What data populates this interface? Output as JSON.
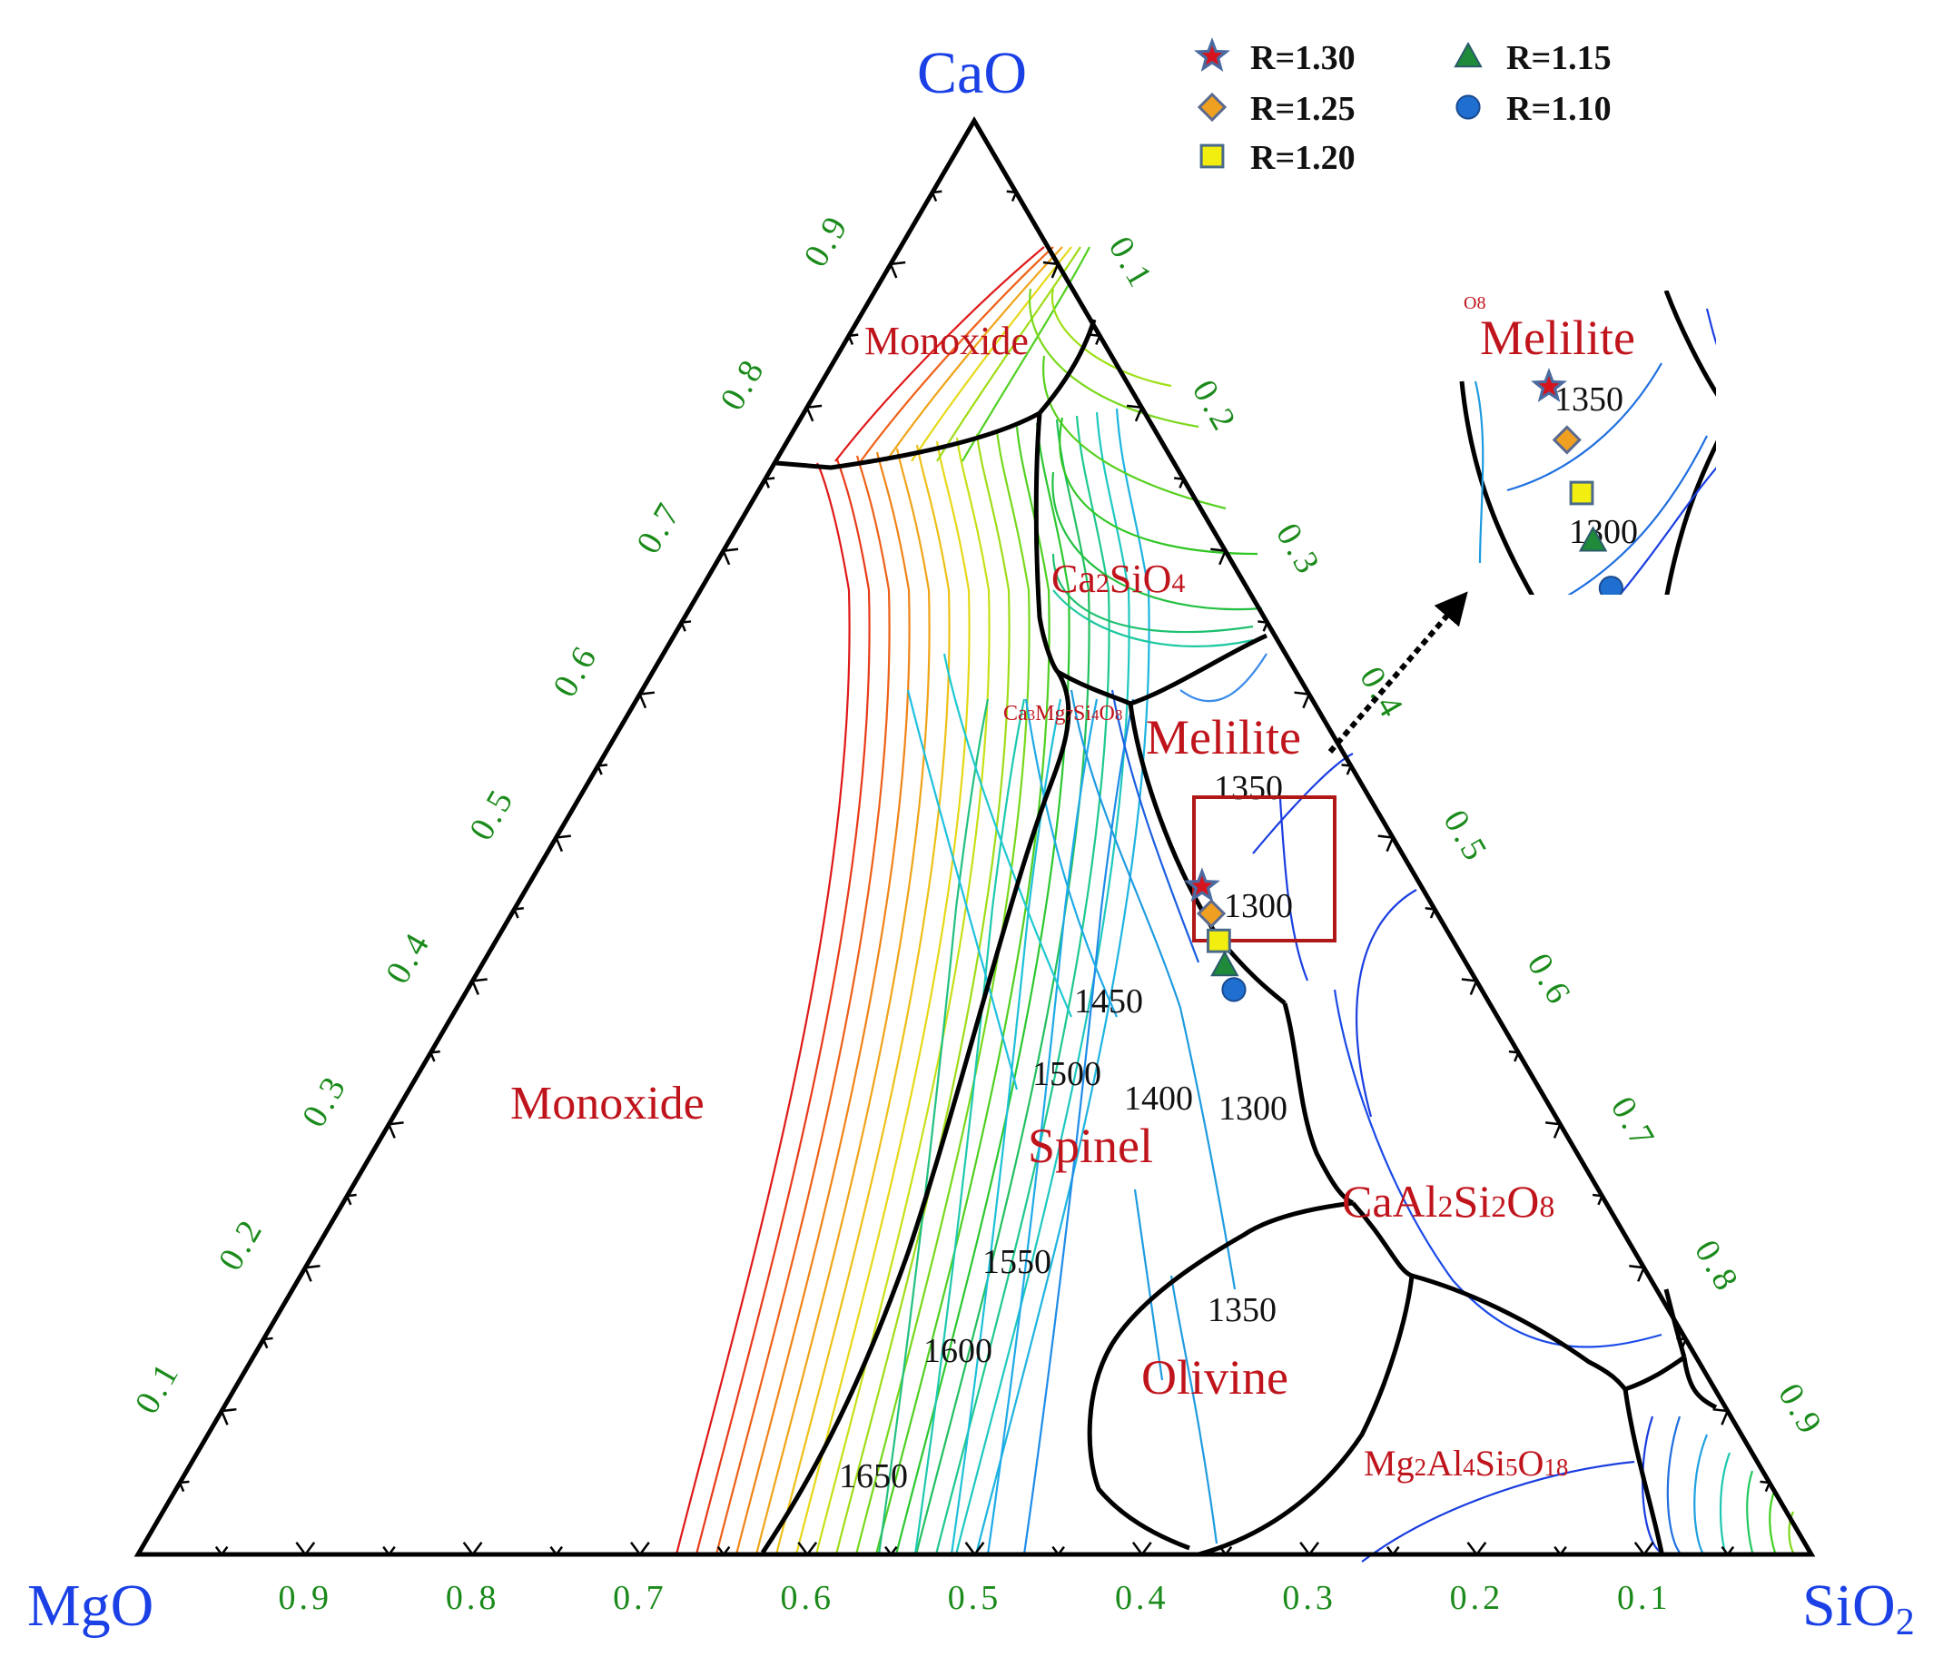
{
  "chart_data": {
    "type": "ternary",
    "vertices": {
      "left": "MgO",
      "top": "CaO",
      "right": "SiO2"
    },
    "axes": {
      "bottom_ticks": [
        "0.9",
        "0.8",
        "0.7",
        "0.6",
        "0.5",
        "0.4",
        "0.3",
        "0.2",
        "0.1"
      ],
      "left_ticks": [
        "0.1",
        "0.2",
        "0.3",
        "0.4",
        "0.5",
        "0.6",
        "0.7",
        "0.8",
        "0.9"
      ],
      "right_ticks": [
        "0.1",
        "0.2",
        "0.3",
        "0.4",
        "0.5",
        "0.6",
        "0.7",
        "0.8",
        "0.9"
      ]
    },
    "phase_fields": [
      {
        "label": "Monoxide",
        "position": "top"
      },
      {
        "label": "Monoxide",
        "position": "left"
      },
      {
        "label": "Ca2SiO4"
      },
      {
        "label": "Ca3Mg7Si4O8"
      },
      {
        "label": "Melilite"
      },
      {
        "label": "Spinel"
      },
      {
        "label": "CaAl2Si2O8"
      },
      {
        "label": "Olivine"
      },
      {
        "label": "Mg2Al4Si5O18"
      }
    ],
    "isotherms": [
      "1650",
      "1600",
      "1550",
      "1500",
      "1450",
      "1400",
      "1350",
      "1300",
      "1350",
      "1300"
    ],
    "points": [
      {
        "name": "R=1.30",
        "marker": "star",
        "color": "#d6141e",
        "CaO": 0.466,
        "SiO2": 0.403
      },
      {
        "name": "R=1.25",
        "marker": "diamond",
        "color": "#f0a020",
        "CaO": 0.447,
        "SiO2": 0.418
      },
      {
        "name": "R=1.20",
        "marker": "square",
        "color": "#f2ee10",
        "CaO": 0.428,
        "SiO2": 0.432
      },
      {
        "name": "R=1.15",
        "marker": "triangle",
        "color": "#1e8a3a",
        "CaO": 0.411,
        "SiO2": 0.444
      },
      {
        "name": "R=1.10",
        "marker": "circle",
        "color": "#1e6fd0",
        "CaO": 0.394,
        "SiO2": 0.458
      }
    ],
    "inset": {
      "label_melilite": "Melilite",
      "label_cut": "O8",
      "iso_1350": "1350",
      "iso_1300": "1300"
    },
    "legend": {
      "placement": "top-right"
    }
  }
}
